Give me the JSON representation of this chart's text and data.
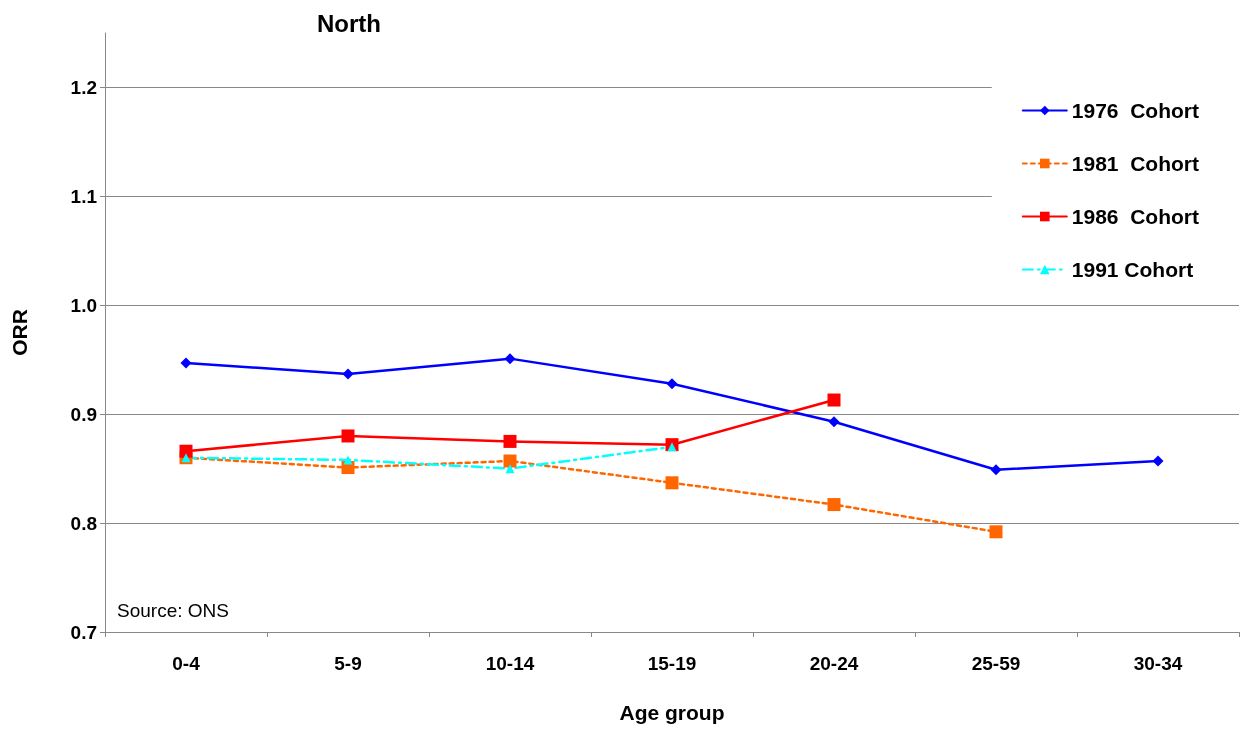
{
  "chart_data": {
    "type": "line",
    "title": "North",
    "xlabel": "Age group",
    "ylabel": "ORR",
    "categories": [
      "0-4",
      "5-9",
      "10-14",
      "15-19",
      "20-24",
      "25-59",
      "30-34"
    ],
    "series": [
      {
        "name": "1976  Cohort",
        "color": "#0000ff",
        "marker": "diamond",
        "line_style": "solid",
        "values": [
          0.947,
          0.937,
          0.951,
          0.928,
          0.893,
          0.849,
          0.857
        ]
      },
      {
        "name": "1981  Cohort",
        "color": "#ff6600",
        "marker": "square",
        "line_style": "dotted",
        "values": [
          0.86,
          0.851,
          0.857,
          0.837,
          0.817,
          0.792,
          null
        ]
      },
      {
        "name": "1986  Cohort",
        "color": "#ff0000",
        "marker": "square",
        "line_style": "solid",
        "values": [
          0.866,
          0.88,
          0.875,
          0.872,
          0.913,
          null,
          null
        ]
      },
      {
        "name": "1991 Cohort",
        "color": "#00ffff",
        "marker": "triangle",
        "line_style": "dashed",
        "values": [
          0.86,
          0.858,
          0.85,
          0.87,
          null,
          null,
          null
        ]
      }
    ],
    "ylim": [
      0.7,
      1.25
    ],
    "yticks": [
      {
        "value": 0.7,
        "label": "0.7"
      },
      {
        "value": 0.8,
        "label": "0.8"
      },
      {
        "value": 0.9,
        "label": "0.9"
      },
      {
        "value": 1.0,
        "label": "1.0"
      },
      {
        "value": 1.1,
        "label": "1.1"
      },
      {
        "value": 1.2,
        "label": "1.2"
      }
    ],
    "grid": "y",
    "legend": "top right",
    "annotations": [
      "Source: ONS"
    ]
  }
}
